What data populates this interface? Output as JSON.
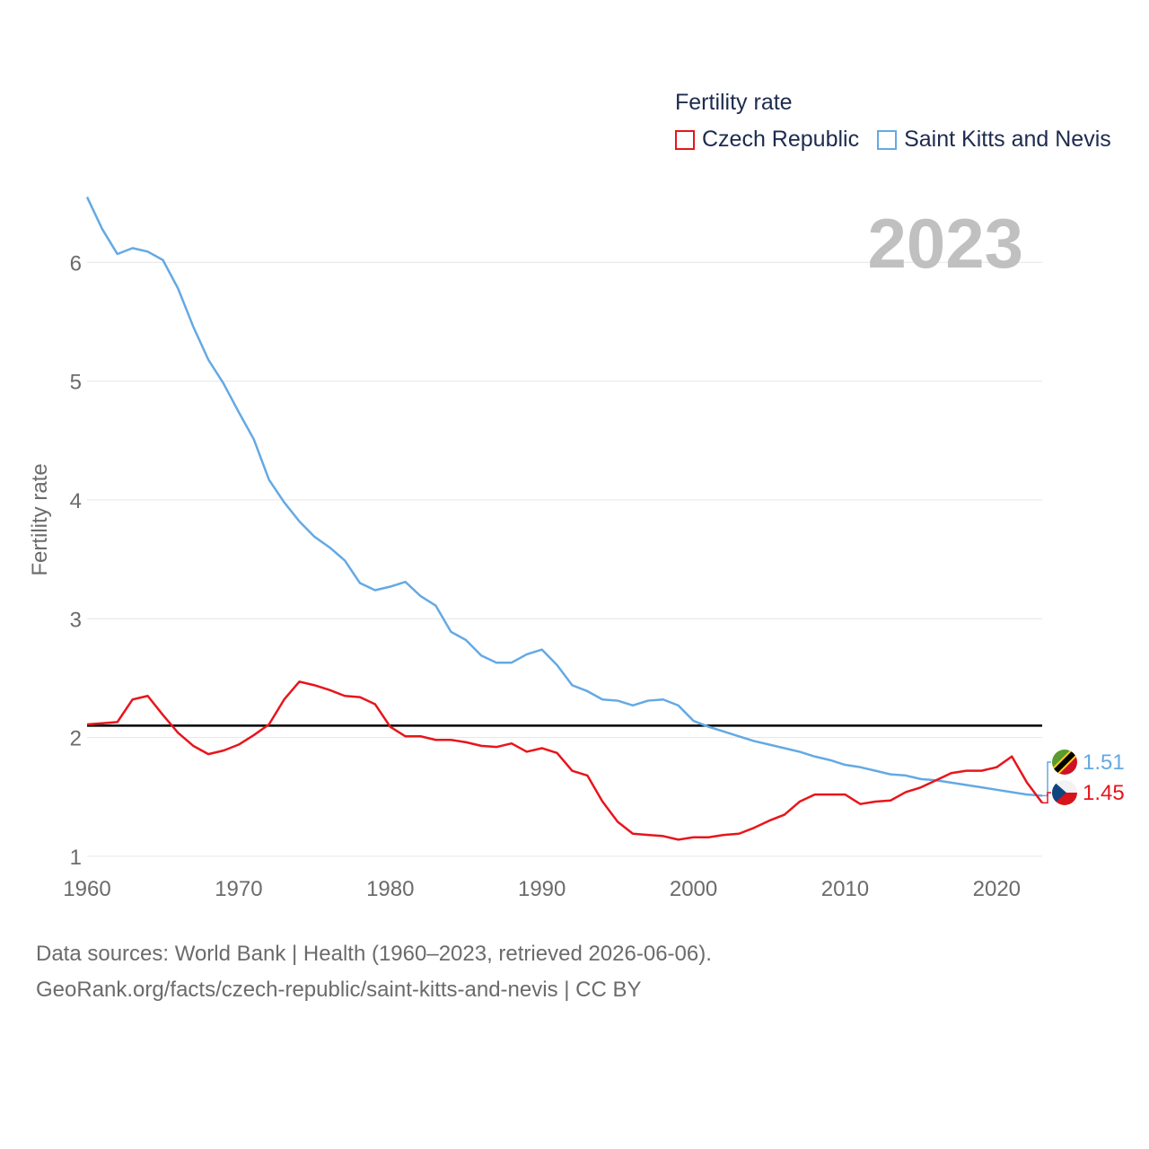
{
  "legend": {
    "title": "Fertility rate",
    "items": [
      {
        "label": "Czech Republic",
        "color": "#e8151b"
      },
      {
        "label": "Saint Kitts and Nevis",
        "color": "#64a9e4"
      }
    ]
  },
  "sources": {
    "line1": "Data sources: World Bank | Health (1960–2023, retrieved 2026-06-06).",
    "line2": "GeoRank.org/facts/czech-republic/saint-kitts-and-nevis | CC BY"
  },
  "chart_data": {
    "type": "line",
    "title": "Fertility rate",
    "year_label": "2023",
    "xlabel": "",
    "ylabel": "Fertility rate",
    "xlim": [
      1960,
      2023
    ],
    "ylim": [
      0.75,
      6.75
    ],
    "x_ticks": [
      1960,
      1970,
      1980,
      1990,
      2000,
      2010,
      2020
    ],
    "y_ticks": [
      1,
      2,
      3,
      4,
      5,
      6
    ],
    "grid": true,
    "reference_line": {
      "value": 2.1,
      "color": "#000000"
    },
    "x": [
      1960,
      1961,
      1962,
      1963,
      1964,
      1965,
      1966,
      1967,
      1968,
      1969,
      1970,
      1971,
      1972,
      1973,
      1974,
      1975,
      1976,
      1977,
      1978,
      1979,
      1980,
      1981,
      1982,
      1983,
      1984,
      1985,
      1986,
      1987,
      1988,
      1989,
      1990,
      1991,
      1992,
      1993,
      1994,
      1995,
      1996,
      1997,
      1998,
      1999,
      2000,
      2001,
      2002,
      2003,
      2004,
      2005,
      2006,
      2007,
      2008,
      2009,
      2010,
      2011,
      2012,
      2013,
      2014,
      2015,
      2016,
      2017,
      2018,
      2019,
      2020,
      2021,
      2022,
      2023
    ],
    "series": [
      {
        "name": "Saint Kitts and Nevis",
        "color": "#64a9e4",
        "end_label": "1.51",
        "values": [
          6.55,
          6.28,
          6.07,
          6.12,
          6.09,
          6.02,
          5.78,
          5.46,
          5.18,
          4.98,
          4.74,
          4.51,
          4.17,
          3.98,
          3.82,
          3.69,
          3.6,
          3.49,
          3.3,
          3.24,
          3.27,
          3.31,
          3.19,
          3.11,
          2.89,
          2.82,
          2.69,
          2.63,
          2.63,
          2.7,
          2.74,
          2.61,
          2.44,
          2.39,
          2.32,
          2.31,
          2.27,
          2.31,
          2.32,
          2.27,
          2.14,
          2.09,
          2.05,
          2.01,
          1.97,
          1.94,
          1.91,
          1.88,
          1.84,
          1.81,
          1.77,
          1.75,
          1.72,
          1.69,
          1.68,
          1.65,
          1.64,
          1.62,
          1.6,
          1.58,
          1.56,
          1.54,
          1.52,
          1.51
        ]
      },
      {
        "name": "Czech Republic",
        "color": "#e8151b",
        "end_label": "1.45",
        "values": [
          2.11,
          2.12,
          2.13,
          2.32,
          2.35,
          2.19,
          2.04,
          1.93,
          1.86,
          1.89,
          1.94,
          2.02,
          2.11,
          2.32,
          2.47,
          2.44,
          2.4,
          2.35,
          2.34,
          2.28,
          2.09,
          2.01,
          2.01,
          1.98,
          1.98,
          1.96,
          1.93,
          1.92,
          1.95,
          1.88,
          1.91,
          1.87,
          1.72,
          1.68,
          1.46,
          1.29,
          1.19,
          1.18,
          1.17,
          1.14,
          1.16,
          1.16,
          1.18,
          1.19,
          1.24,
          1.3,
          1.35,
          1.46,
          1.52,
          1.52,
          1.52,
          1.44,
          1.46,
          1.47,
          1.54,
          1.58,
          1.64,
          1.7,
          1.72,
          1.72,
          1.75,
          1.84,
          1.62,
          1.45
        ]
      }
    ]
  }
}
